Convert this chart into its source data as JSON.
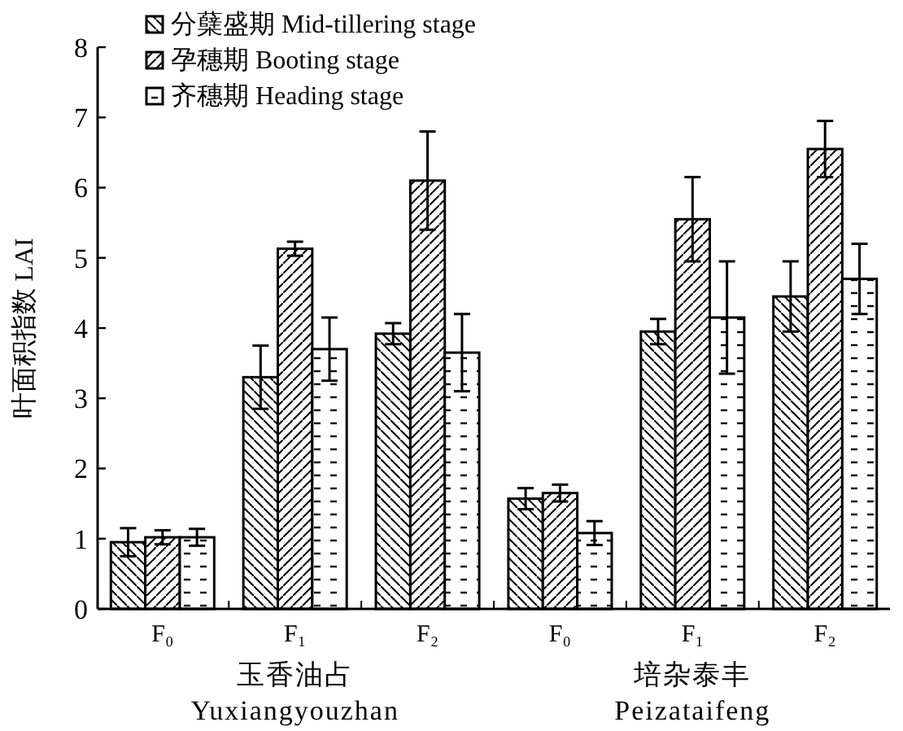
{
  "chart_data": {
    "type": "bar",
    "ylabel": "叶面积指数 LAI",
    "categories": [
      "F₀",
      "F₁",
      "F₂",
      "F₀",
      "F₁",
      "F₂"
    ],
    "series": [
      {
        "name": "分蘖盛期 Mid-tillering stage",
        "color": "#000000",
        "values": [
          0.95,
          3.3,
          3.92,
          1.57,
          3.95,
          4.45
        ],
        "errors": [
          0.2,
          0.45,
          0.15,
          0.15,
          0.18,
          0.5
        ]
      },
      {
        "name": "孕穗期 Booting stage",
        "color": "#000000",
        "values": [
          1.02,
          5.13,
          6.1,
          1.65,
          5.55,
          6.55
        ],
        "errors": [
          0.1,
          0.1,
          0.7,
          0.12,
          0.6,
          0.4
        ]
      },
      {
        "name": "齐穗期 Heading stage",
        "color": "#000000",
        "values": [
          1.02,
          3.7,
          3.65,
          1.08,
          4.15,
          4.7
        ],
        "errors": [
          0.12,
          0.45,
          0.55,
          0.17,
          0.8,
          0.5
        ]
      }
    ],
    "annotations": [
      "玉香油占 Yuxiangyouzhan",
      "培杂泰丰 Peizataifeng"
    ],
    "ylim": [
      0,
      8
    ],
    "yticks": [
      0,
      1,
      2,
      3,
      4,
      5,
      6,
      7,
      8
    ],
    "legend": "top left",
    "grid": false
  }
}
